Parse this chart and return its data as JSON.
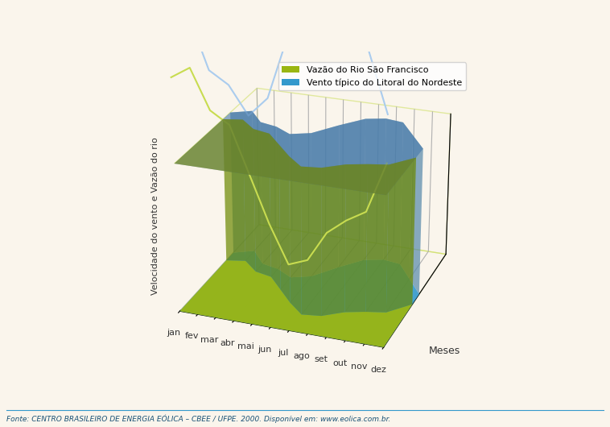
{
  "months": [
    "jan",
    "fev",
    "mar",
    "abr",
    "mai",
    "jun",
    "jul",
    "ago",
    "set",
    "out",
    "nov",
    "dez"
  ],
  "vazao_values": [
    62,
    65,
    55,
    52,
    40,
    28,
    18,
    20,
    28,
    32,
    35,
    48
  ],
  "vento_values": [
    72,
    78,
    65,
    62,
    55,
    60,
    75,
    88,
    92,
    90,
    75,
    60
  ],
  "vazao_color": "#9ab612",
  "vento_color": "#3399cc",
  "vazao_edge_color": "#c8dc50",
  "vento_edge_color": "#aaccee",
  "background_color": "#faf5ec",
  "grid_color": "#c8dc50",
  "legend_vazao": "Vazão do Rio São Francisco",
  "legend_vento": "Vento típico do Litoral do Nordeste",
  "ylabel": "Velocidade do vento e Vazão do rio",
  "xlabel": "Meses",
  "footnote": "Fonte: CENTRO BRASILEIRO DE ENERGIA EÓLICA – CBEE / UFPE. 2000. Disponível em: www.eolica.com.br.",
  "title_color": "#333333",
  "footnote_color": "#1a5276",
  "axis_color": "#999999"
}
